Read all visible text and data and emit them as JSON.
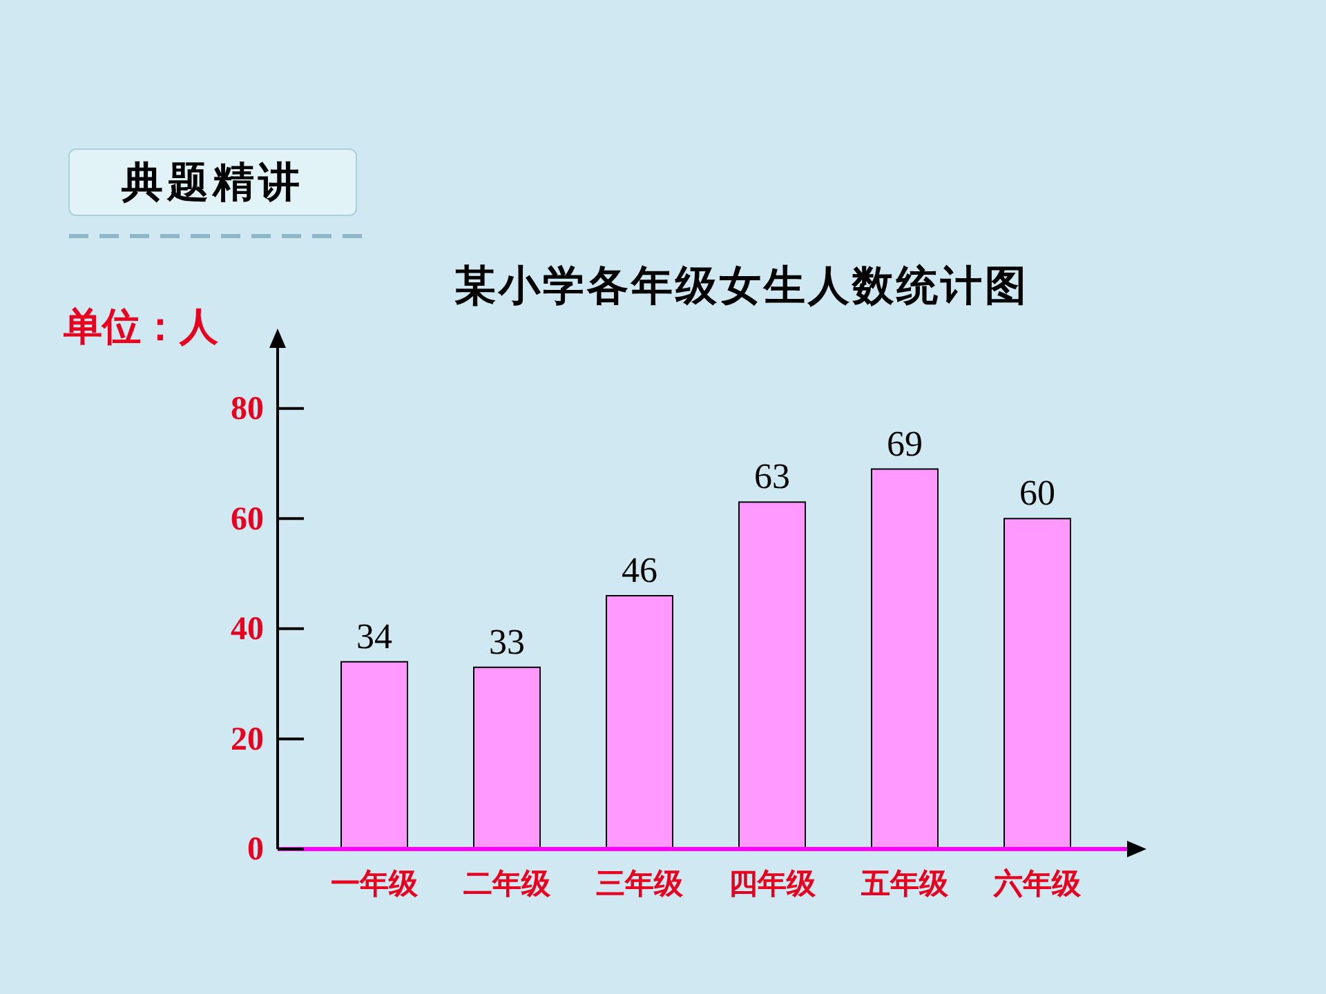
{
  "chart_data": {
    "type": "bar",
    "title": "某小学各年级女生人数统计图",
    "ylabel": "单位：人",
    "annotations": [
      "典题精讲"
    ],
    "categories": [
      "一年级",
      "二年级",
      "三年级",
      "四年级",
      "五年级",
      "六年级"
    ],
    "values": [
      34,
      33,
      46,
      63,
      69,
      60
    ],
    "color": "#ff99ff",
    "data_labels": true,
    "ylim": [
      0,
      92
    ],
    "yticks": [
      0,
      20,
      40,
      60,
      80
    ],
    "grid": false
  }
}
